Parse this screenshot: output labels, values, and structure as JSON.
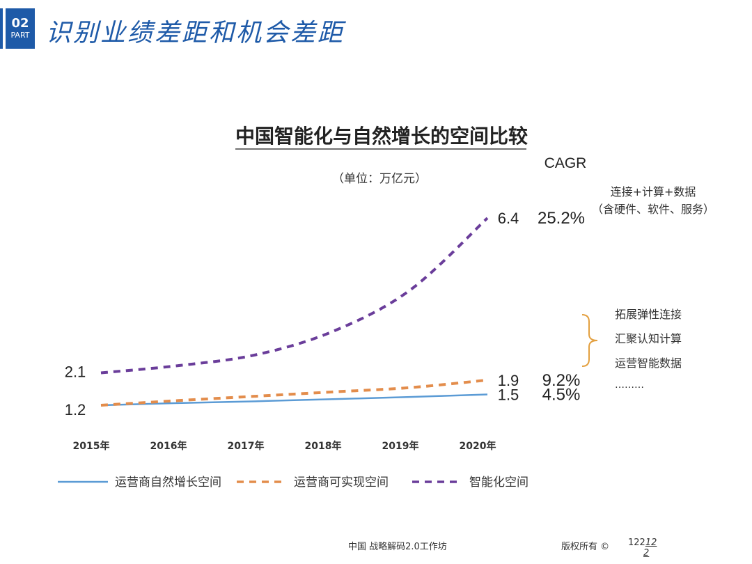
{
  "header": {
    "part_number": "02",
    "part_label": "PART",
    "title": "识别业绩差距和机会差距"
  },
  "chart_data": {
    "type": "line",
    "title": "中国智能化与自然增长的空间比较",
    "unit": "（单位：万亿元）",
    "cagr_label": "CAGR",
    "categories": [
      "2015年",
      "2016年",
      "2017年",
      "2018年",
      "2019年",
      "2020年"
    ],
    "series": [
      {
        "name": "运营商自然增长空间",
        "color": "#5b9bd5",
        "dash": "solid",
        "values": [
          1.2,
          1.26,
          1.31,
          1.37,
          1.43,
          1.5
        ],
        "start_label": "1.2",
        "end_label": "1.5",
        "cagr": "4.5%"
      },
      {
        "name": "运营商可实现空间",
        "color": "#e38d4c",
        "dash": "dashed",
        "values": [
          1.2,
          1.33,
          1.45,
          1.57,
          1.69,
          1.9
        ],
        "end_label": "1.9",
        "cagr": "9.2%"
      },
      {
        "name": "智能化空间",
        "color": "#6a3d9a",
        "dash": "dashed",
        "values": [
          2.1,
          2.3,
          2.6,
          3.25,
          4.4,
          6.4
        ],
        "start_label": "2.1",
        "end_label": "6.4",
        "cagr": "25.2%"
      }
    ],
    "annotations": {
      "top_line1": "连接+计算+数据",
      "top_line2": "（含硬件、软件、服务）",
      "bracket_items": [
        "拓展弹性连接",
        "汇聚认知计算",
        "运营智能数据",
        "………"
      ]
    }
  },
  "footer": {
    "left": "中国   战略解码2.0工作坊",
    "right": "版权所有 ©",
    "page_a": "122",
    "page_b": "12",
    "page_c": "2"
  }
}
